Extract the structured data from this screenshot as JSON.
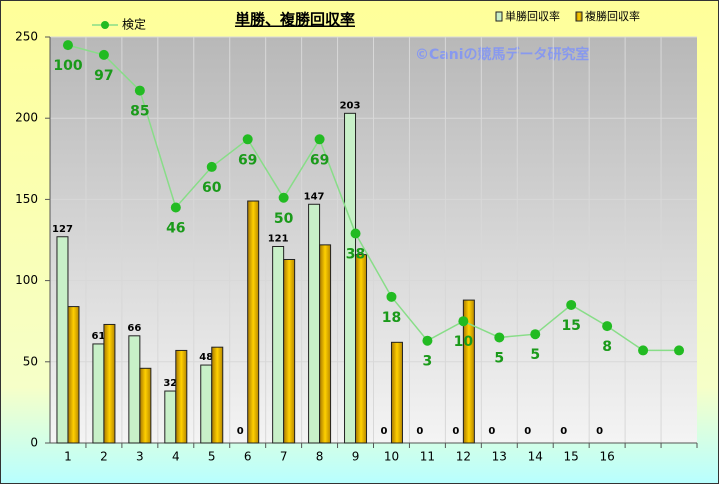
{
  "chart_data": {
    "type": "bar",
    "title": "単勝、複勝回収率",
    "watermark": "©Caniの競馬データ研究室",
    "categories": [
      "1",
      "2",
      "3",
      "4",
      "5",
      "6",
      "7",
      "8",
      "9",
      "10",
      "11",
      "12",
      "13",
      "14",
      "15",
      "16",
      null,
      null
    ],
    "series": [
      {
        "name": "単勝回収率",
        "type": "bar",
        "color": "#c8f0c8",
        "show_labels": true,
        "values": [
          127,
          61,
          66,
          32,
          48,
          0,
          121,
          147,
          203,
          0,
          0,
          0,
          0,
          0,
          0,
          0,
          null,
          null
        ]
      },
      {
        "name": "複勝回収率",
        "type": "bar",
        "color": "#e8b400",
        "show_labels": false,
        "values": [
          84,
          73,
          46,
          57,
          59,
          149,
          113,
          122,
          116,
          62,
          0,
          88,
          0,
          0,
          0,
          0,
          null,
          null
        ]
      },
      {
        "name": "検定",
        "type": "line",
        "color": "#88dd88",
        "marker_color": "#22bb22",
        "values": [
          245,
          239,
          217,
          145,
          170,
          187,
          151,
          187,
          129,
          90,
          63,
          75,
          65,
          67,
          85,
          72,
          57,
          57
        ],
        "annotations": [
          100,
          97,
          85,
          46,
          60,
          69,
          50,
          69,
          38,
          18,
          3,
          10,
          5,
          5,
          15,
          8,
          null,
          null
        ]
      }
    ],
    "ylim": [
      0,
      250
    ],
    "yticks": [
      0,
      50,
      100,
      150,
      200,
      250
    ],
    "grid": true
  }
}
